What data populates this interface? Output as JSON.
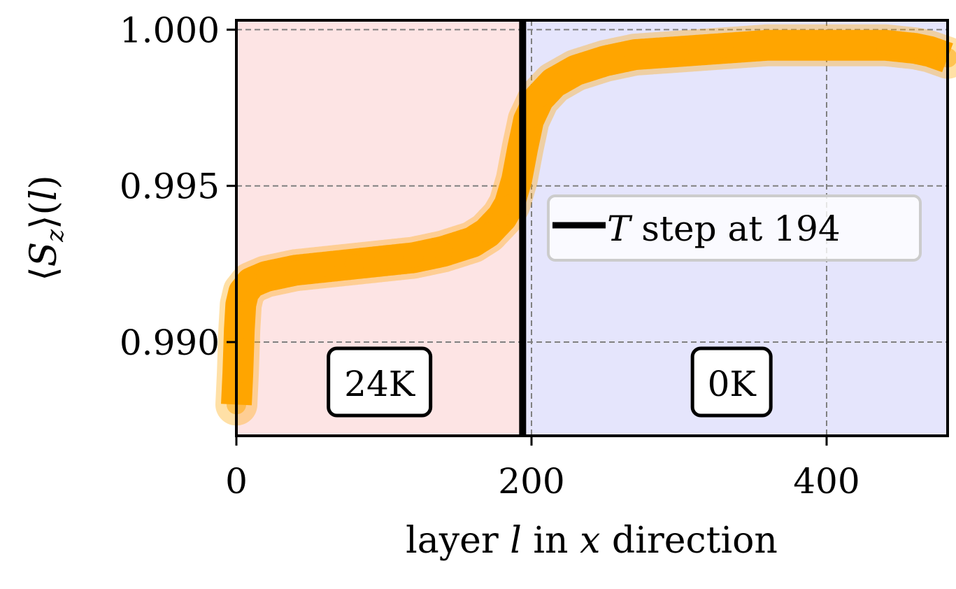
{
  "chart_data": {
    "type": "scatter",
    "title": "",
    "xlabel": "layer l in x direction",
    "xlabel_parts": {
      "before": "layer ",
      "var1": "l",
      "middle": " in ",
      "var2": "x",
      "after": " direction"
    },
    "ylabel": "⟨Sz⟩(l)",
    "ylabel_parts": {
      "open": "⟨",
      "var": "S",
      "sub": "z",
      "close": "⟩(",
      "arg": "l",
      "end": ")"
    },
    "xlim": [
      0,
      482
    ],
    "ylim": [
      0.987,
      1.0003
    ],
    "xticks": [
      0,
      200,
      400
    ],
    "xtick_labels": [
      "0",
      "200",
      "400"
    ],
    "yticks": [
      0.99,
      0.995,
      1.0
    ],
    "ytick_labels": [
      "0.990",
      "0.995",
      "1.000"
    ],
    "grid": true,
    "regions": [
      {
        "x_from": 0,
        "x_to": 194,
        "label": "24K",
        "color": "#fde4e4"
      },
      {
        "x_from": 194,
        "x_to": 482,
        "label": "0K",
        "color": "#e5e5fc"
      }
    ],
    "vline": {
      "x": 194,
      "color": "#000000"
    },
    "legend": {
      "placement": "center-right",
      "var": "T",
      "text": " step at 194"
    },
    "series": [
      {
        "color": "#ffa500",
        "points": [
          [
            0,
            0.988
          ],
          [
            1,
            0.989
          ],
          [
            2,
            0.9904
          ],
          [
            3,
            0.9912
          ],
          [
            5,
            0.9916
          ],
          [
            10,
            0.9919
          ],
          [
            20,
            0.9921
          ],
          [
            30,
            0.9922
          ],
          [
            40,
            0.9923
          ],
          [
            60,
            0.9924
          ],
          [
            80,
            0.9925
          ],
          [
            100,
            0.9926
          ],
          [
            120,
            0.9927
          ],
          [
            140,
            0.9929
          ],
          [
            160,
            0.9932
          ],
          [
            170,
            0.9935
          ],
          [
            180,
            0.994
          ],
          [
            185,
            0.9944
          ],
          [
            190,
            0.9952
          ],
          [
            194,
            0.9962
          ],
          [
            198,
            0.9971
          ],
          [
            205,
            0.9978
          ],
          [
            215,
            0.9983
          ],
          [
            230,
            0.9987
          ],
          [
            250,
            0.999
          ],
          [
            270,
            0.9992
          ],
          [
            300,
            0.9993
          ],
          [
            330,
            0.9994
          ],
          [
            360,
            0.9995
          ],
          [
            400,
            0.9995
          ],
          [
            440,
            0.9995
          ],
          [
            460,
            0.9994
          ],
          [
            470,
            0.9993
          ],
          [
            482,
            0.9991
          ]
        ]
      }
    ]
  }
}
